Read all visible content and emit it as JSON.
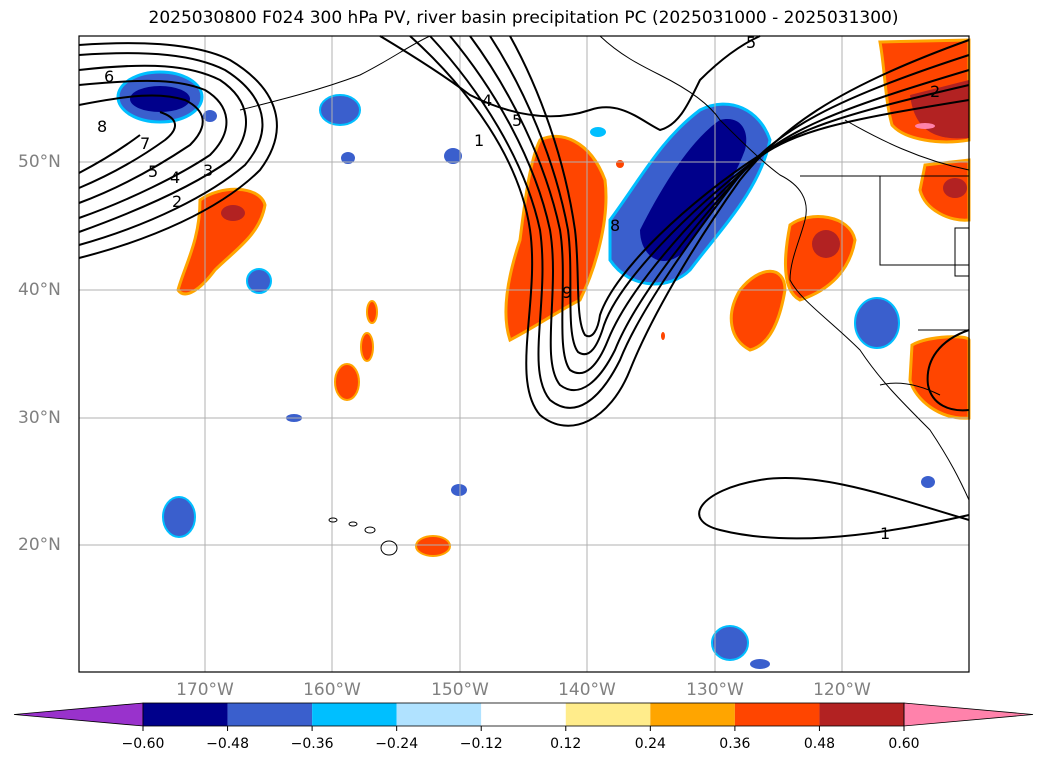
{
  "title": "2025030800 F024 300 hPa PV, river basin precipitation PC (2025031000 - 2025031300)",
  "map": {
    "lat_labels": [
      "50°N",
      "40°N",
      "30°N",
      "20°N"
    ],
    "lon_labels": [
      "170°W",
      "160°W",
      "150°W",
      "140°W",
      "130°W",
      "120°W"
    ],
    "contour_labels": [
      "6",
      "8",
      "7",
      "5",
      "4",
      "3",
      "2",
      "4",
      "5",
      "1",
      "9",
      "8",
      "5",
      "2",
      "1"
    ]
  },
  "colorbar": {
    "ticks": [
      "−0.60",
      "−0.48",
      "−0.36",
      "−0.24",
      "−0.12",
      "0.12",
      "0.24",
      "0.36",
      "0.48",
      "0.60"
    ],
    "colors": [
      "#9932cc",
      "#00008b",
      "#3a5fcd",
      "#00bfff",
      "#b0e2ff",
      "#ffffff",
      "#ffec8b",
      "#ffa500",
      "#ff4500",
      "#b22222",
      "#ff82ab"
    ]
  }
}
